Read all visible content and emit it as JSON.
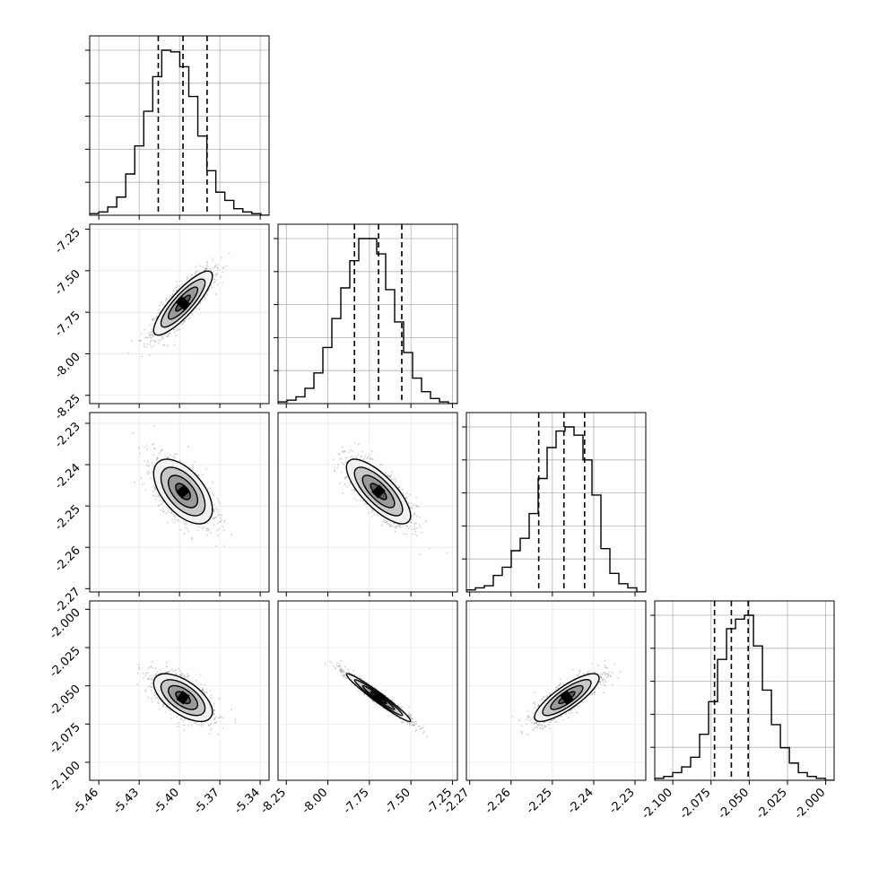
{
  "chart_data": {
    "type": "corner",
    "grid": true,
    "parameters": [
      {
        "ticks": [
          "-5.46",
          "-5.43",
          "-5.40",
          "-5.37",
          "-5.34"
        ],
        "tick_values": [
          -5.46,
          -5.43,
          -5.4,
          -5.37,
          -5.34
        ],
        "range": [
          -5.4668,
          -5.3334
        ],
        "quantiles": [
          -5.4158,
          -5.3974,
          -5.3795
        ],
        "hist_bin_edges_start": -5.4668,
        "hist_bin_width": 0.0067,
        "hist_counts": [
          1,
          2,
          5,
          11,
          25,
          42,
          63,
          84,
          100,
          99,
          90,
          72,
          48,
          27,
          14,
          9,
          4,
          2,
          1,
          0
        ]
      },
      {
        "ticks": [
          "-8.25",
          "-8.00",
          "-7.75",
          "-7.50",
          "-7.25"
        ],
        "tick_values": [
          -8.25,
          -8.0,
          -7.75,
          -7.5,
          -7.25
        ],
        "range": [
          -8.3,
          -7.22
        ],
        "quantiles": [
          -7.84,
          -7.695,
          -7.555
        ],
        "hist_bin_edges_start": -8.3,
        "hist_bin_width": 0.054,
        "hist_counts": [
          1,
          2,
          4,
          9,
          18,
          33,
          50,
          68,
          84,
          97,
          97,
          88,
          67,
          48,
          30,
          15,
          7,
          3,
          1,
          0
        ]
      },
      {
        "ticks": [
          "-2.27",
          "-2.26",
          "-2.25",
          "-2.24",
          "-2.23"
        ],
        "tick_values": [
          -2.27,
          -2.26,
          -2.25,
          -2.24,
          -2.23
        ],
        "range": [
          -2.2708,
          -2.2274
        ],
        "quantiles": [
          -2.2533,
          -2.2472,
          -2.2422
        ],
        "hist_bin_edges_start": -2.2708,
        "hist_bin_width": 0.00217,
        "hist_counts": [
          1,
          2,
          3,
          8,
          12,
          20,
          26,
          38,
          55,
          70,
          78,
          80,
          76,
          64,
          47,
          21,
          9,
          4,
          2,
          0
        ]
      },
      {
        "ticks": [
          "-2.100",
          "-2.075",
          "-2.050",
          "-2.025",
          "-2.000"
        ],
        "tick_values": [
          -2.1,
          -2.075,
          -2.05,
          -2.025,
          -2.0
        ],
        "range": [
          -2.1118,
          -1.9945
        ],
        "quantiles": [
          -2.0727,
          -2.0617,
          -2.0507
        ],
        "hist_bin_edges_start": -2.1118,
        "hist_bin_width": 0.00587,
        "hist_counts": [
          1,
          2,
          4,
          7,
          12,
          24,
          41,
          63,
          79,
          84,
          86,
          70,
          47,
          29,
          17,
          9,
          4,
          2,
          1,
          0
        ]
      }
    ],
    "hist_ylim": [
      0,
      100
    ],
    "hist_y_ticks": [
      20,
      40,
      60,
      80,
      100
    ],
    "correlations": {
      "1-0": 0.85,
      "2-0": -0.55,
      "2-1": -0.75,
      "3-0": -0.6,
      "3-1": -0.97,
      "3-2": 0.82
    },
    "two_d_centers": {
      "1-0": [
        -5.3974,
        -7.695
      ],
      "2-0": [
        -5.3974,
        -2.2465
      ],
      "2-1": [
        -7.695,
        -2.2465
      ],
      "3-0": [
        -5.3974,
        -2.0577
      ],
      "3-1": [
        -7.695,
        -2.0577
      ],
      "3-2": [
        -2.2465,
        -2.0577
      ]
    },
    "two_d_sigmas": {
      "0": 0.0109,
      "1": 0.0963,
      "2": 0.0039,
      "3": 0.0078
    },
    "contour_levels_sigma": [
      0.5,
      1.0,
      1.5,
      2.0
    ]
  }
}
